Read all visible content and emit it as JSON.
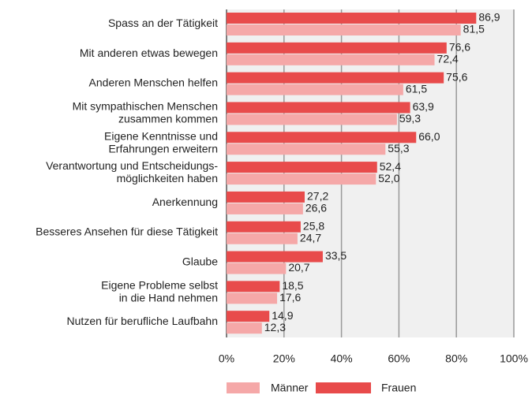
{
  "chart_data": {
    "type": "hbar",
    "categories": [
      "Spass an der Tätigkeit",
      "Mit anderen etwas bewegen",
      "Anderen Menschen helfen",
      "Mit sympathischen Menschen\nzusammen kommen",
      "Eigene Kenntnisse und\nErfahrungen erweitern",
      "Verantwortung und Entscheidungs-\nmöglichkeiten haben",
      "Anerkennung",
      "Besseres Ansehen für diese Tätigkeit",
      "Glaube",
      "Eigene Probleme selbst\nin die Hand nehmen",
      "Nutzen für berufliche Laufbahn"
    ],
    "series": [
      {
        "name": "Frauen",
        "color": "#e84b4b",
        "values": [
          86.9,
          76.6,
          75.6,
          63.9,
          66.0,
          52.4,
          27.2,
          25.8,
          33.5,
          18.5,
          14.9
        ],
        "value_labels": [
          "86,9",
          "76,6",
          "75,6",
          "63,9",
          "66,0",
          "52,4",
          "27,2",
          "25,8",
          "33,5",
          "18,5",
          "14,9"
        ]
      },
      {
        "name": "Männer",
        "color": "#f5a8a8",
        "values": [
          81.5,
          72.4,
          61.5,
          59.3,
          55.3,
          52.0,
          26.6,
          24.7,
          20.7,
          17.6,
          12.3
        ],
        "value_labels": [
          "81,5",
          "72,4",
          "61,5",
          "59,3",
          "55,3",
          "52,0",
          "26,6",
          "24,7",
          "20,7",
          "17,6",
          "12,3"
        ]
      }
    ],
    "xlim": [
      0,
      100
    ],
    "xticks": [
      {
        "value": 0,
        "label": "0%"
      },
      {
        "value": 20,
        "label": "20%"
      },
      {
        "value": 40,
        "label": "40%"
      },
      {
        "value": 60,
        "label": "60%"
      },
      {
        "value": 80,
        "label": "80%"
      },
      {
        "value": 100,
        "label": "100%"
      }
    ],
    "grid": true
  }
}
